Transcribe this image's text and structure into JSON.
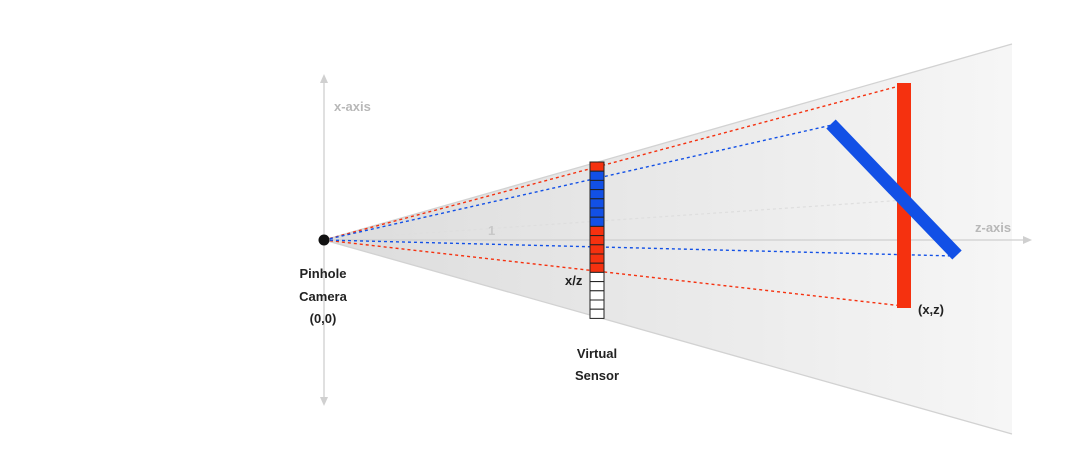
{
  "labels": {
    "x_axis": "x-axis",
    "z_axis": "z-axis",
    "one": "1",
    "camera_line1": "Pinhole",
    "camera_line2": "Camera",
    "camera_line3": "(0,0)",
    "sensor_coord": "x/z",
    "sensor_line1": "Virtual",
    "sensor_line2": "Sensor",
    "object_coord": "(x,z)"
  },
  "sensor": {
    "cells": [
      "red",
      "blue",
      "blue",
      "blue",
      "blue",
      "blue",
      "blue",
      "red",
      "red",
      "red",
      "red",
      "red",
      "white",
      "white",
      "white",
      "white",
      "white"
    ]
  },
  "colors": {
    "red": "#f5310f",
    "blue": "#1250e6",
    "axis": "#d6d6d6",
    "frustum": "#ececec",
    "cell_border": "#222222"
  }
}
